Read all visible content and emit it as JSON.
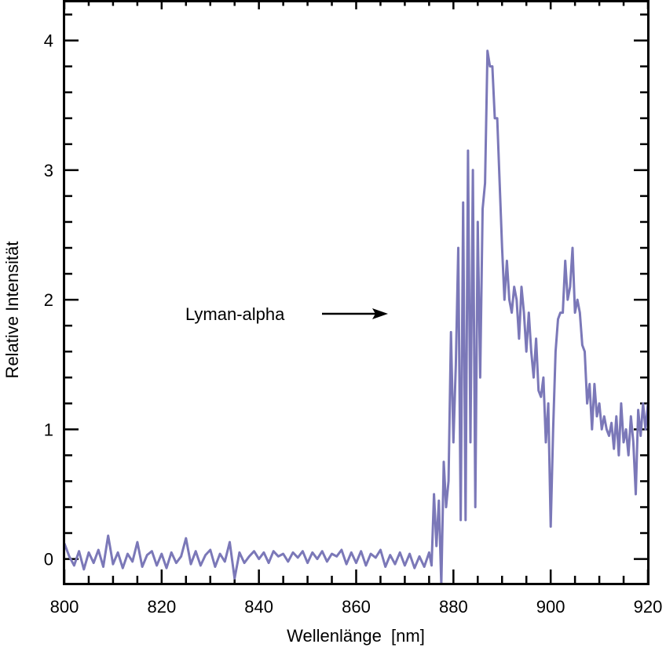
{
  "chart_data": {
    "type": "line",
    "title": "",
    "xlabel": "Wellenlänge  [nm]",
    "ylabel": "Relative Intensität",
    "xlim": [
      800,
      920
    ],
    "ylim": [
      -0.19,
      4.3
    ],
    "x_ticks": [
      800,
      820,
      840,
      860,
      880,
      900,
      920
    ],
    "x_tick_labels": [
      "800",
      "820",
      "840",
      "860",
      "880",
      "900",
      "920"
    ],
    "y_ticks": [
      0,
      1,
      2,
      3,
      4
    ],
    "y_tick_labels": [
      "0",
      "1",
      "2",
      "3",
      "4"
    ],
    "x_minor_step": 5,
    "y_minor_step": 0.2,
    "grid": false,
    "line_color": "#7b78b8",
    "annotation": {
      "text": "Lyman-alpha",
      "arrow": "right"
    },
    "series": [
      {
        "points": [
          [
            800,
            0.12
          ],
          [
            801,
            0.02
          ],
          [
            802,
            -0.05
          ],
          [
            803,
            0.06
          ],
          [
            804,
            -0.08
          ],
          [
            805,
            0.05
          ],
          [
            806,
            -0.03
          ],
          [
            807,
            0.07
          ],
          [
            808,
            -0.06
          ],
          [
            809,
            0.18
          ],
          [
            810,
            -0.04
          ],
          [
            811,
            0.05
          ],
          [
            812,
            -0.07
          ],
          [
            813,
            0.04
          ],
          [
            814,
            -0.02
          ],
          [
            815,
            0.13
          ],
          [
            816,
            -0.06
          ],
          [
            817,
            0.03
          ],
          [
            818,
            0.06
          ],
          [
            819,
            -0.05
          ],
          [
            820,
            0.04
          ],
          [
            821,
            -0.07
          ],
          [
            822,
            0.05
          ],
          [
            823,
            -0.03
          ],
          [
            824,
            0.02
          ],
          [
            825,
            0.16
          ],
          [
            826,
            -0.04
          ],
          [
            827,
            0.06
          ],
          [
            828,
            -0.05
          ],
          [
            829,
            0.03
          ],
          [
            830,
            0.07
          ],
          [
            831,
            -0.06
          ],
          [
            832,
            0.04
          ],
          [
            833,
            -0.02
          ],
          [
            834,
            0.13
          ],
          [
            835,
            -0.15
          ],
          [
            836,
            0.05
          ],
          [
            837,
            -0.03
          ],
          [
            838,
            0.02
          ],
          [
            839,
            0.06
          ],
          [
            840,
            0.0
          ],
          [
            841,
            0.05
          ],
          [
            842,
            -0.03
          ],
          [
            843,
            0.06
          ],
          [
            844,
            0.02
          ],
          [
            845,
            0.04
          ],
          [
            846,
            -0.02
          ],
          [
            847,
            0.05
          ],
          [
            848,
            0.01
          ],
          [
            849,
            0.06
          ],
          [
            850,
            -0.03
          ],
          [
            851,
            0.05
          ],
          [
            852,
            0.0
          ],
          [
            853,
            0.06
          ],
          [
            854,
            -0.02
          ],
          [
            855,
            0.04
          ],
          [
            856,
            0.02
          ],
          [
            857,
            0.07
          ],
          [
            858,
            -0.04
          ],
          [
            859,
            0.05
          ],
          [
            860,
            -0.03
          ],
          [
            861,
            0.06
          ],
          [
            862,
            -0.05
          ],
          [
            863,
            0.04
          ],
          [
            864,
            0.01
          ],
          [
            865,
            0.07
          ],
          [
            866,
            -0.06
          ],
          [
            867,
            0.03
          ],
          [
            868,
            -0.04
          ],
          [
            869,
            0.05
          ],
          [
            870,
            -0.05
          ],
          [
            871,
            0.04
          ],
          [
            872,
            -0.07
          ],
          [
            873,
            0.02
          ],
          [
            874,
            -0.06
          ],
          [
            875,
            0.05
          ],
          [
            875.5,
            -0.05
          ],
          [
            876,
            0.5
          ],
          [
            876.5,
            0.1
          ],
          [
            877,
            0.45
          ],
          [
            877.5,
            -0.2
          ],
          [
            878,
            0.75
          ],
          [
            878.5,
            0.4
          ],
          [
            879,
            0.6
          ],
          [
            879.5,
            1.75
          ],
          [
            880,
            0.9
          ],
          [
            880.5,
            1.5
          ],
          [
            881,
            2.4
          ],
          [
            881.5,
            0.3
          ],
          [
            882,
            2.75
          ],
          [
            882.5,
            0.3
          ],
          [
            883,
            3.15
          ],
          [
            883.5,
            0.9
          ],
          [
            884,
            3.0
          ],
          [
            884.5,
            0.4
          ],
          [
            885,
            2.6
          ],
          [
            885.5,
            1.4
          ],
          [
            886,
            2.7
          ],
          [
            886.5,
            2.9
          ],
          [
            887,
            3.92
          ],
          [
            887.5,
            3.8
          ],
          [
            888,
            3.8
          ],
          [
            888.5,
            3.4
          ],
          [
            889,
            3.4
          ],
          [
            889.5,
            2.9
          ],
          [
            890,
            2.4
          ],
          [
            890.5,
            2.0
          ],
          [
            891,
            2.3
          ],
          [
            891.5,
            2.0
          ],
          [
            892,
            1.9
          ],
          [
            892.5,
            2.1
          ],
          [
            893,
            2.0
          ],
          [
            893.5,
            1.7
          ],
          [
            894,
            2.1
          ],
          [
            894.5,
            1.9
          ],
          [
            895,
            1.6
          ],
          [
            895.5,
            1.9
          ],
          [
            896,
            1.6
          ],
          [
            896.5,
            1.4
          ],
          [
            897,
            1.7
          ],
          [
            897.5,
            1.3
          ],
          [
            898,
            1.25
          ],
          [
            898.5,
            1.4
          ],
          [
            899,
            0.9
          ],
          [
            899.5,
            1.2
          ],
          [
            900,
            0.25
          ],
          [
            900.5,
            1.0
          ],
          [
            901,
            1.6
          ],
          [
            901.5,
            1.85
          ],
          [
            902,
            1.9
          ],
          [
            902.5,
            1.9
          ],
          [
            903,
            2.3
          ],
          [
            903.5,
            2.0
          ],
          [
            904,
            2.1
          ],
          [
            904.5,
            2.4
          ],
          [
            905,
            1.9
          ],
          [
            905.5,
            2.0
          ],
          [
            906,
            1.9
          ],
          [
            906.5,
            1.65
          ],
          [
            907,
            1.6
          ],
          [
            907.5,
            1.2
          ],
          [
            908,
            1.35
          ],
          [
            908.5,
            1.0
          ],
          [
            909,
            1.35
          ],
          [
            909.5,
            1.1
          ],
          [
            910,
            1.2
          ],
          [
            910.5,
            1.0
          ],
          [
            911,
            1.1
          ],
          [
            911.5,
            1.0
          ],
          [
            912,
            0.95
          ],
          [
            912.5,
            1.05
          ],
          [
            913,
            0.85
          ],
          [
            913.5,
            1.1
          ],
          [
            914,
            0.8
          ],
          [
            914.5,
            1.2
          ],
          [
            915,
            0.9
          ],
          [
            915.5,
            1.0
          ],
          [
            916,
            0.8
          ],
          [
            916.5,
            1.1
          ],
          [
            917,
            0.9
          ],
          [
            917.5,
            0.5
          ],
          [
            918,
            1.15
          ],
          [
            918.5,
            0.95
          ],
          [
            919,
            1.2
          ],
          [
            919.5,
            1.0
          ],
          [
            920,
            1.2
          ]
        ]
      }
    ]
  }
}
